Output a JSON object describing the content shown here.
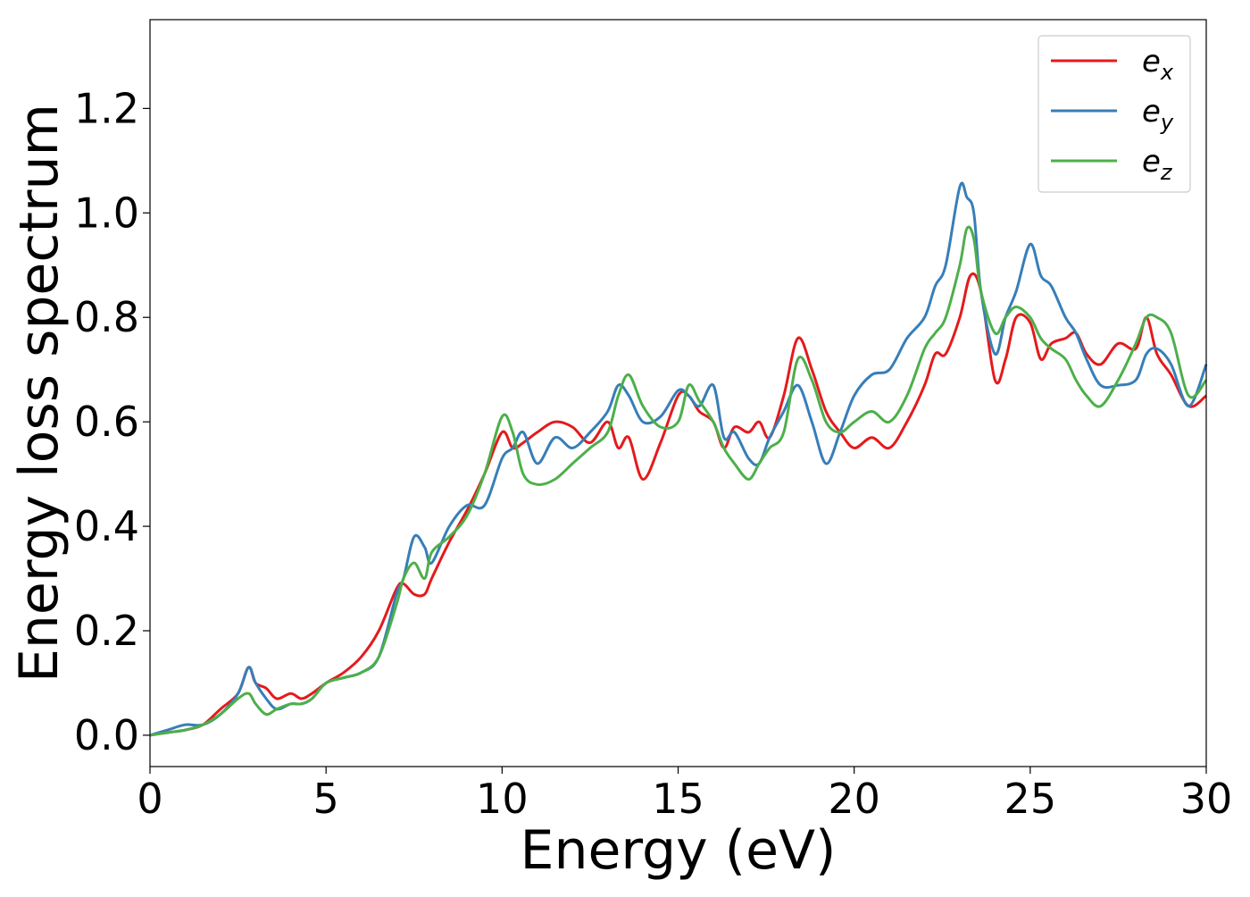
{
  "chart_data": {
    "type": "line",
    "xlabel": "Energy (eV)",
    "ylabel": "Energy loss spectrum",
    "xlim": [
      0,
      30
    ],
    "ylim": [
      -0.06,
      1.37
    ],
    "xticks": [
      "0",
      "5",
      "10",
      "15",
      "20",
      "25",
      "30"
    ],
    "yticks": [
      "0.0",
      "0.2",
      "0.4",
      "0.6",
      "0.8",
      "1.0",
      "1.2"
    ],
    "xtick_values": [
      0,
      5,
      10,
      15,
      20,
      25,
      30
    ],
    "ytick_values": [
      0,
      0.2,
      0.4,
      0.6,
      0.8,
      1.0,
      1.2
    ],
    "grid": false,
    "legend": "top-right",
    "series": [
      {
        "name": "e_x",
        "legend_base": "e",
        "legend_sub": "x",
        "color": "#e41a1c",
        "x": [
          0,
          0.5,
          1,
          1.5,
          2,
          2.5,
          2.8,
          3,
          3.3,
          3.6,
          4,
          4.3,
          4.6,
          5,
          5.5,
          6,
          6.5,
          7,
          7.2,
          7.5,
          7.8,
          8,
          8.5,
          9,
          9.5,
          10,
          10.3,
          10.6,
          11,
          11.5,
          12,
          12.5,
          13,
          13.3,
          13.6,
          14,
          14.5,
          15,
          15.3,
          15.6,
          16,
          16.3,
          16.6,
          17,
          17.3,
          17.6,
          18,
          18.4,
          18.8,
          19.2,
          19.6,
          20,
          20.5,
          21,
          21.5,
          22,
          22.3,
          22.6,
          23,
          23.3,
          23.6,
          24,
          24.3,
          24.6,
          25,
          25.3,
          25.6,
          26,
          26.3,
          26.6,
          27,
          27.5,
          28,
          28.3,
          28.6,
          29,
          29.5,
          30
        ],
        "y": [
          0,
          0.005,
          0.01,
          0.02,
          0.05,
          0.08,
          0.13,
          0.1,
          0.09,
          0.07,
          0.08,
          0.07,
          0.08,
          0.1,
          0.12,
          0.15,
          0.2,
          0.28,
          0.29,
          0.27,
          0.27,
          0.3,
          0.37,
          0.43,
          0.5,
          0.58,
          0.55,
          0.56,
          0.58,
          0.6,
          0.59,
          0.56,
          0.6,
          0.55,
          0.57,
          0.49,
          0.56,
          0.65,
          0.65,
          0.62,
          0.6,
          0.55,
          0.59,
          0.58,
          0.6,
          0.57,
          0.65,
          0.76,
          0.7,
          0.62,
          0.58,
          0.55,
          0.57,
          0.55,
          0.6,
          0.67,
          0.73,
          0.73,
          0.8,
          0.88,
          0.85,
          0.68,
          0.72,
          0.8,
          0.79,
          0.72,
          0.75,
          0.76,
          0.77,
          0.73,
          0.71,
          0.75,
          0.74,
          0.8,
          0.73,
          0.69,
          0.63,
          0.65
        ]
      },
      {
        "name": "e_y",
        "legend_base": "e",
        "legend_sub": "y",
        "color": "#377eb8",
        "x": [
          0,
          0.5,
          1,
          1.5,
          2,
          2.5,
          2.8,
          3,
          3.3,
          3.6,
          4,
          4.3,
          4.6,
          5,
          5.5,
          6,
          6.5,
          7,
          7.2,
          7.5,
          7.8,
          8,
          8.5,
          9,
          9.5,
          10,
          10.3,
          10.6,
          11,
          11.5,
          12,
          12.5,
          13,
          13.3,
          13.6,
          14,
          14.5,
          15,
          15.3,
          15.6,
          16,
          16.3,
          16.6,
          17,
          17.3,
          17.6,
          18,
          18.4,
          18.8,
          19.2,
          19.6,
          20,
          20.5,
          21,
          21.5,
          22,
          22.3,
          22.6,
          23,
          23.2,
          23.4,
          23.6,
          24,
          24.3,
          24.6,
          25,
          25.3,
          25.6,
          26,
          26.3,
          26.6,
          27,
          27.5,
          28,
          28.3,
          28.6,
          29,
          29.5,
          30
        ],
        "y": [
          0,
          0.01,
          0.02,
          0.02,
          0.04,
          0.08,
          0.13,
          0.1,
          0.07,
          0.05,
          0.06,
          0.06,
          0.07,
          0.1,
          0.11,
          0.12,
          0.15,
          0.27,
          0.3,
          0.38,
          0.36,
          0.33,
          0.4,
          0.44,
          0.44,
          0.53,
          0.55,
          0.58,
          0.52,
          0.57,
          0.55,
          0.58,
          0.62,
          0.67,
          0.65,
          0.6,
          0.61,
          0.66,
          0.65,
          0.63,
          0.67,
          0.57,
          0.58,
          0.53,
          0.52,
          0.57,
          0.62,
          0.67,
          0.6,
          0.52,
          0.58,
          0.65,
          0.69,
          0.7,
          0.76,
          0.8,
          0.86,
          0.9,
          1.05,
          1.03,
          1.0,
          0.85,
          0.73,
          0.8,
          0.85,
          0.94,
          0.88,
          0.86,
          0.8,
          0.77,
          0.72,
          0.67,
          0.67,
          0.68,
          0.73,
          0.74,
          0.71,
          0.63,
          0.71
        ]
      },
      {
        "name": "e_z",
        "legend_base": "e",
        "legend_sub": "z",
        "color": "#4daf4a",
        "x": [
          0,
          0.5,
          1,
          1.5,
          2,
          2.5,
          2.8,
          3,
          3.3,
          3.6,
          4,
          4.3,
          4.6,
          5,
          5.5,
          6,
          6.5,
          7,
          7.2,
          7.5,
          7.8,
          8,
          8.5,
          9,
          9.5,
          10,
          10.3,
          10.6,
          11,
          11.5,
          12,
          12.5,
          13,
          13.3,
          13.6,
          14,
          14.5,
          15,
          15.3,
          15.6,
          16,
          16.3,
          16.6,
          17,
          17.3,
          17.6,
          18,
          18.4,
          18.8,
          19.2,
          19.6,
          20,
          20.5,
          21,
          21.5,
          22,
          22.3,
          22.6,
          23,
          23.2,
          23.4,
          23.6,
          24,
          24.3,
          24.6,
          25,
          25.3,
          25.6,
          26,
          26.3,
          26.6,
          27,
          27.5,
          28,
          28.3,
          28.6,
          29,
          29.5,
          30
        ],
        "y": [
          0,
          0.005,
          0.01,
          0.02,
          0.04,
          0.07,
          0.08,
          0.06,
          0.04,
          0.05,
          0.06,
          0.06,
          0.07,
          0.1,
          0.11,
          0.12,
          0.15,
          0.25,
          0.3,
          0.33,
          0.3,
          0.35,
          0.38,
          0.42,
          0.5,
          0.61,
          0.58,
          0.5,
          0.48,
          0.49,
          0.52,
          0.55,
          0.58,
          0.65,
          0.69,
          0.63,
          0.59,
          0.6,
          0.67,
          0.64,
          0.6,
          0.55,
          0.52,
          0.49,
          0.52,
          0.55,
          0.58,
          0.72,
          0.68,
          0.6,
          0.58,
          0.6,
          0.62,
          0.6,
          0.65,
          0.74,
          0.77,
          0.8,
          0.9,
          0.97,
          0.95,
          0.85,
          0.77,
          0.8,
          0.82,
          0.8,
          0.76,
          0.74,
          0.72,
          0.68,
          0.65,
          0.63,
          0.68,
          0.75,
          0.8,
          0.8,
          0.77,
          0.65,
          0.68
        ]
      }
    ]
  }
}
